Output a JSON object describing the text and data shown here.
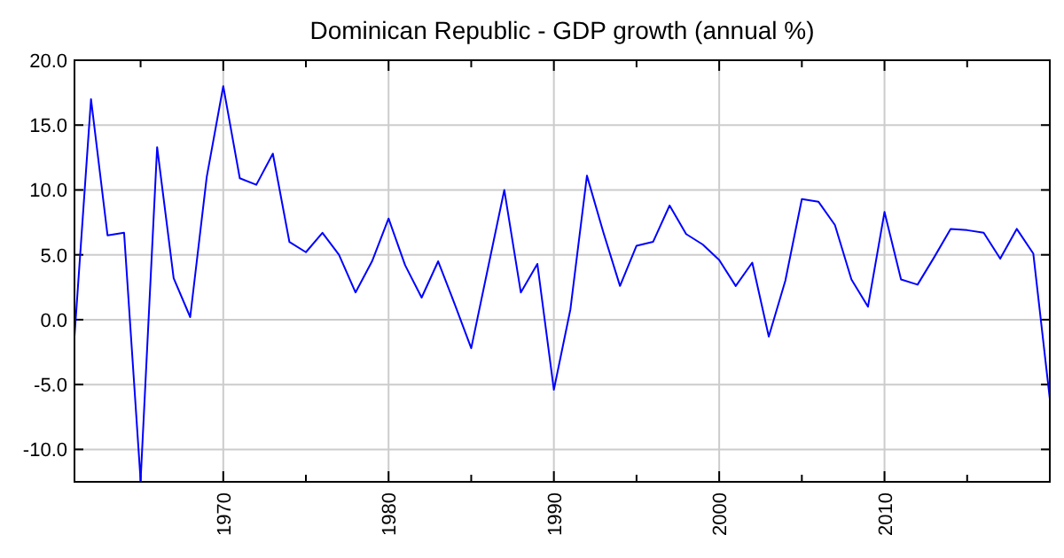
{
  "chart_data": {
    "type": "line",
    "title": "Dominican Republic - GDP growth (annual %)",
    "x": [
      1961,
      1962,
      1963,
      1964,
      1965,
      1966,
      1967,
      1968,
      1969,
      1970,
      1971,
      1972,
      1973,
      1974,
      1975,
      1976,
      1977,
      1978,
      1979,
      1980,
      1981,
      1982,
      1983,
      1984,
      1985,
      1986,
      1987,
      1988,
      1989,
      1990,
      1991,
      1992,
      1993,
      1994,
      1995,
      1996,
      1997,
      1998,
      1999,
      2000,
      2001,
      2002,
      2003,
      2004,
      2005,
      2006,
      2007,
      2008,
      2009,
      2010,
      2011,
      2012,
      2013,
      2014,
      2015,
      2016,
      2017,
      2018,
      2019,
      2020
    ],
    "series": [
      {
        "color": "#0000ff",
        "values": [
          -1.3,
          17.0,
          6.5,
          6.7,
          -12.4,
          13.3,
          3.2,
          0.2,
          11.0,
          18.0,
          10.9,
          10.4,
          12.8,
          6.0,
          5.2,
          6.7,
          5.0,
          2.1,
          4.5,
          7.8,
          4.2,
          1.7,
          4.5,
          1.2,
          -2.2,
          3.9,
          10.0,
          2.1,
          4.3,
          -5.4,
          0.8,
          11.1,
          6.7,
          2.6,
          5.7,
          6.0,
          8.8,
          6.6,
          5.8,
          4.6,
          2.6,
          4.4,
          -1.3,
          3.0,
          9.3,
          9.1,
          7.3,
          3.1,
          1.0,
          8.3,
          3.1,
          2.7,
          4.8,
          7.0,
          6.9,
          6.7,
          4.7,
          7.0,
          5.1,
          -6.1
        ]
      }
    ],
    "xlim": [
      1961,
      2020
    ],
    "xticks": [
      {
        "value": 1965,
        "label": null
      },
      1970,
      {
        "value": 1975,
        "label": null
      },
      1980,
      {
        "value": 1985,
        "label": null
      },
      1990,
      {
        "value": 1995,
        "label": null
      },
      2000,
      {
        "value": 2005,
        "label": null
      },
      2010,
      {
        "value": 2015,
        "label": null
      }
    ],
    "ylim": [
      -12.5,
      20
    ],
    "yticks": [
      {
        "value": -10,
        "label": "-10.0"
      },
      {
        "value": -5,
        "label": "-5.0"
      },
      {
        "value": 0,
        "label": "0.0"
      },
      {
        "value": 5,
        "label": "5.0"
      },
      {
        "value": 10,
        "label": "10.0"
      },
      {
        "value": 15,
        "label": "15.0"
      },
      {
        "value": 20,
        "label": "20.0"
      }
    ],
    "grid": true,
    "marker": "none",
    "line_style": "solid"
  }
}
